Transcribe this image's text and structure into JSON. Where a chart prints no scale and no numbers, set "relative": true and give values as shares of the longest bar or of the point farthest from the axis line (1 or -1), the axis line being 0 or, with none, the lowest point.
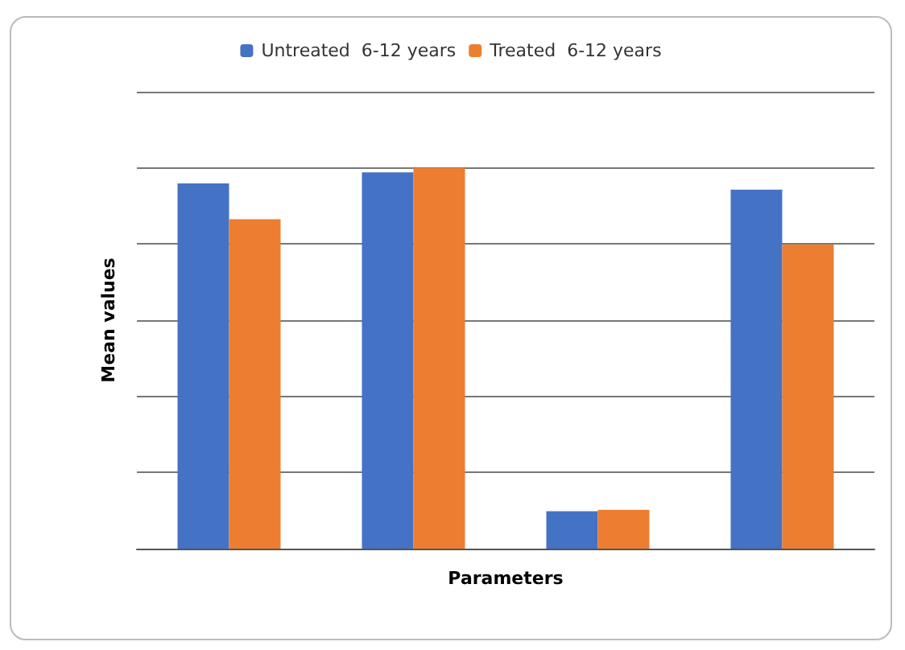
{
  "chart_data": {
    "type": "bar",
    "relative": true,
    "xlabel": "Parameters",
    "ylabel": "Mean values",
    "categories": [
      null,
      null,
      null,
      null
    ],
    "series": [
      {
        "name": "Untreated  6-12 years",
        "color": "#4472c4",
        "values": [
          0.959,
          0.988,
          0.098,
          0.943
        ]
      },
      {
        "name": "Treated  6-12 years",
        "color": "#ed7d31",
        "values": [
          0.865,
          1,
          0.102,
          0.799
        ]
      }
    ],
    "grid": "y",
    "legend": "top"
  }
}
